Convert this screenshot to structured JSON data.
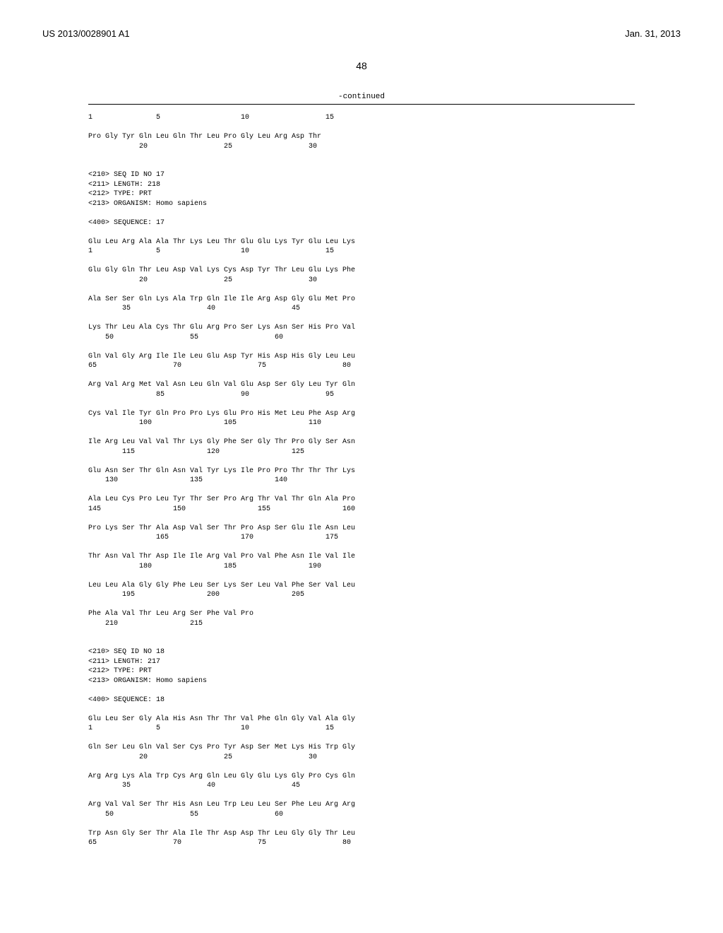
{
  "header": {
    "docNumber": "US 2013/0028901 A1",
    "date": "Jan. 31, 2013"
  },
  "pageNumber": "48",
  "continuedText": "-continued",
  "sequenceContent": "1               5                   10                  15\n\nPro Gly Tyr Gln Leu Gln Thr Leu Pro Gly Leu Arg Asp Thr\n            20                  25                  30\n\n\n<210> SEQ ID NO 17\n<211> LENGTH: 218\n<212> TYPE: PRT\n<213> ORGANISM: Homo sapiens\n\n<400> SEQUENCE: 17\n\nGlu Leu Arg Ala Ala Thr Lys Leu Thr Glu Glu Lys Tyr Glu Leu Lys\n1               5                   10                  15\n\nGlu Gly Gln Thr Leu Asp Val Lys Cys Asp Tyr Thr Leu Glu Lys Phe\n            20                  25                  30\n\nAla Ser Ser Gln Lys Ala Trp Gln Ile Ile Arg Asp Gly Glu Met Pro\n        35                  40                  45\n\nLys Thr Leu Ala Cys Thr Glu Arg Pro Ser Lys Asn Ser His Pro Val\n    50                  55                  60\n\nGln Val Gly Arg Ile Ile Leu Glu Asp Tyr His Asp His Gly Leu Leu\n65                  70                  75                  80\n\nArg Val Arg Met Val Asn Leu Gln Val Glu Asp Ser Gly Leu Tyr Gln\n                85                  90                  95\n\nCys Val Ile Tyr Gln Pro Pro Lys Glu Pro His Met Leu Phe Asp Arg\n            100                 105                 110\n\nIle Arg Leu Val Val Thr Lys Gly Phe Ser Gly Thr Pro Gly Ser Asn\n        115                 120                 125\n\nGlu Asn Ser Thr Gln Asn Val Tyr Lys Ile Pro Pro Thr Thr Thr Lys\n    130                 135                 140\n\nAla Leu Cys Pro Leu Tyr Thr Ser Pro Arg Thr Val Thr Gln Ala Pro\n145                 150                 155                 160\n\nPro Lys Ser Thr Ala Asp Val Ser Thr Pro Asp Ser Glu Ile Asn Leu\n                165                 170                 175\n\nThr Asn Val Thr Asp Ile Ile Arg Val Pro Val Phe Asn Ile Val Ile\n            180                 185                 190\n\nLeu Leu Ala Gly Gly Phe Leu Ser Lys Ser Leu Val Phe Ser Val Leu\n        195                 200                 205\n\nPhe Ala Val Thr Leu Arg Ser Phe Val Pro\n    210                 215\n\n\n<210> SEQ ID NO 18\n<211> LENGTH: 217\n<212> TYPE: PRT\n<213> ORGANISM: Homo sapiens\n\n<400> SEQUENCE: 18\n\nGlu Leu Ser Gly Ala His Asn Thr Thr Val Phe Gln Gly Val Ala Gly\n1               5                   10                  15\n\nGln Ser Leu Gln Val Ser Cys Pro Tyr Asp Ser Met Lys His Trp Gly\n            20                  25                  30\n\nArg Arg Lys Ala Trp Cys Arg Gln Leu Gly Glu Lys Gly Pro Cys Gln\n        35                  40                  45\n\nArg Val Val Ser Thr His Asn Leu Trp Leu Leu Ser Phe Leu Arg Arg\n    50                  55                  60\n\nTrp Asn Gly Ser Thr Ala Ile Thr Asp Asp Thr Leu Gly Gly Thr Leu\n65                  70                  75                  80"
}
